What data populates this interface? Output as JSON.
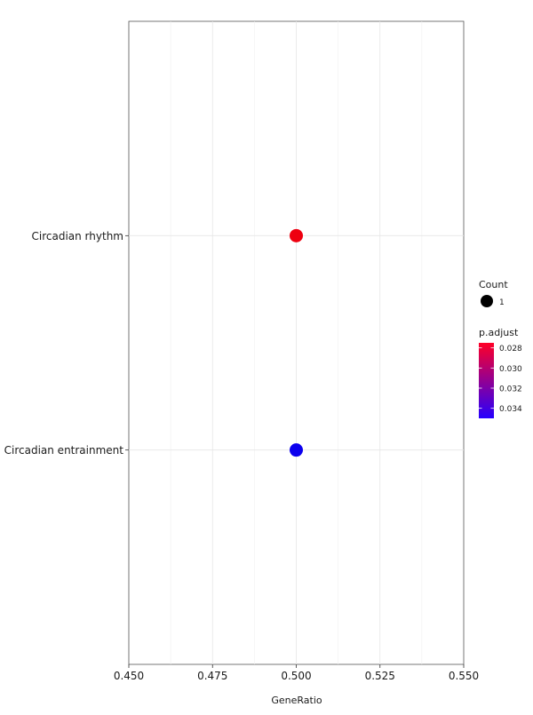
{
  "chart_data": {
    "type": "scatter",
    "title": "",
    "xlabel": "GeneRatio",
    "ylabel": "",
    "xlim": [
      0.45,
      0.55
    ],
    "x_ticks": [
      "0.450",
      "0.475",
      "0.500",
      "0.525",
      "0.550"
    ],
    "x_tick_values": [
      0.45,
      0.475,
      0.5,
      0.525,
      0.55
    ],
    "categories": [
      "Circadian entrainment",
      "Circadian rhythm"
    ],
    "points": [
      {
        "category": "Circadian rhythm",
        "x": 0.5,
        "count": 1,
        "p_adjust": 0.0275,
        "color": "#ee0010"
      },
      {
        "category": "Circadian entrainment",
        "x": 0.5,
        "count": 1,
        "p_adjust": 0.035,
        "color": "#0c00ee"
      }
    ],
    "grid": true,
    "legend_position": "right",
    "legend": {
      "size_title": "Count",
      "size_entries": [
        "1"
      ],
      "color_title": "p.adjust",
      "color_ticks": [
        "0.028",
        "0.030",
        "0.032",
        "0.034"
      ],
      "color_tick_values": [
        0.028,
        0.03,
        0.032,
        0.034
      ],
      "color_range": [
        0.0275,
        0.035
      ],
      "color_low": "#ff0027",
      "color_high": "#2600ff"
    }
  }
}
